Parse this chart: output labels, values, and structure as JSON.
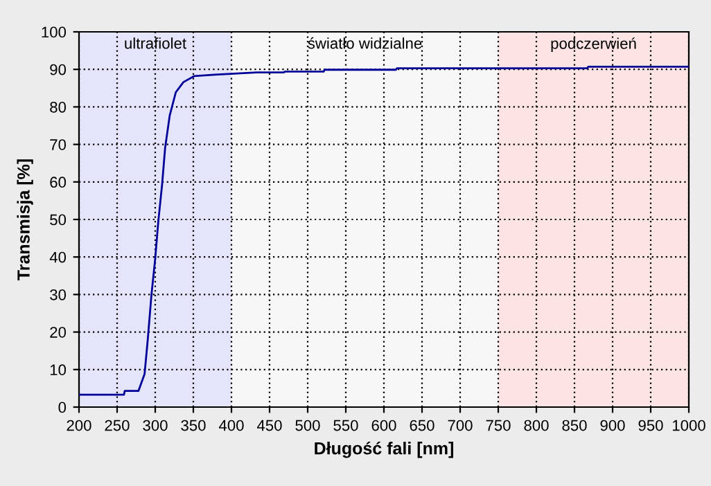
{
  "chart_data": {
    "type": "line",
    "xlabel": "Długość fali [nm]",
    "ylabel": "Transmisja [%]",
    "series": [
      {
        "color": "#000099",
        "x": [
          200,
          259,
          260,
          278,
          286,
          290,
          295,
          300,
          304,
          309,
          313,
          319,
          327,
          337,
          351,
          378,
          433,
          469,
          470,
          521,
          522,
          616,
          617,
          867,
          868,
          1000
        ],
        "values": [
          3.3,
          3.3,
          4.3,
          4.3,
          8.8,
          17.5,
          29.8,
          39.6,
          49.4,
          59.3,
          69.1,
          77.7,
          83.9,
          86.6,
          88.2,
          88.6,
          89.2,
          89.2,
          89.4,
          89.4,
          89.9,
          89.9,
          90.3,
          90.3,
          90.7,
          90.7
        ]
      }
    ],
    "xlim": [
      200,
      1000
    ],
    "xticks": [
      200,
      250,
      300,
      350,
      400,
      450,
      500,
      550,
      600,
      650,
      700,
      750,
      800,
      850,
      900,
      950,
      1000
    ],
    "ylim": [
      0,
      100
    ],
    "yticks": [
      0,
      10,
      20,
      30,
      40,
      50,
      60,
      70,
      80,
      90,
      100
    ],
    "grid": true,
    "line_style": "solid",
    "marker": "none",
    "bands": [
      {
        "axis": "x",
        "from": 200,
        "to": 400,
        "label": "ultrafiolet",
        "color": "#e4e4fb"
      },
      {
        "axis": "x",
        "from": 400,
        "to": 750,
        "label": "światło widzialne",
        "color": "#f7f7f7"
      },
      {
        "axis": "x",
        "from": 750,
        "to": 1000,
        "label": "podczerwień",
        "color": "#fde4e4"
      }
    ]
  }
}
